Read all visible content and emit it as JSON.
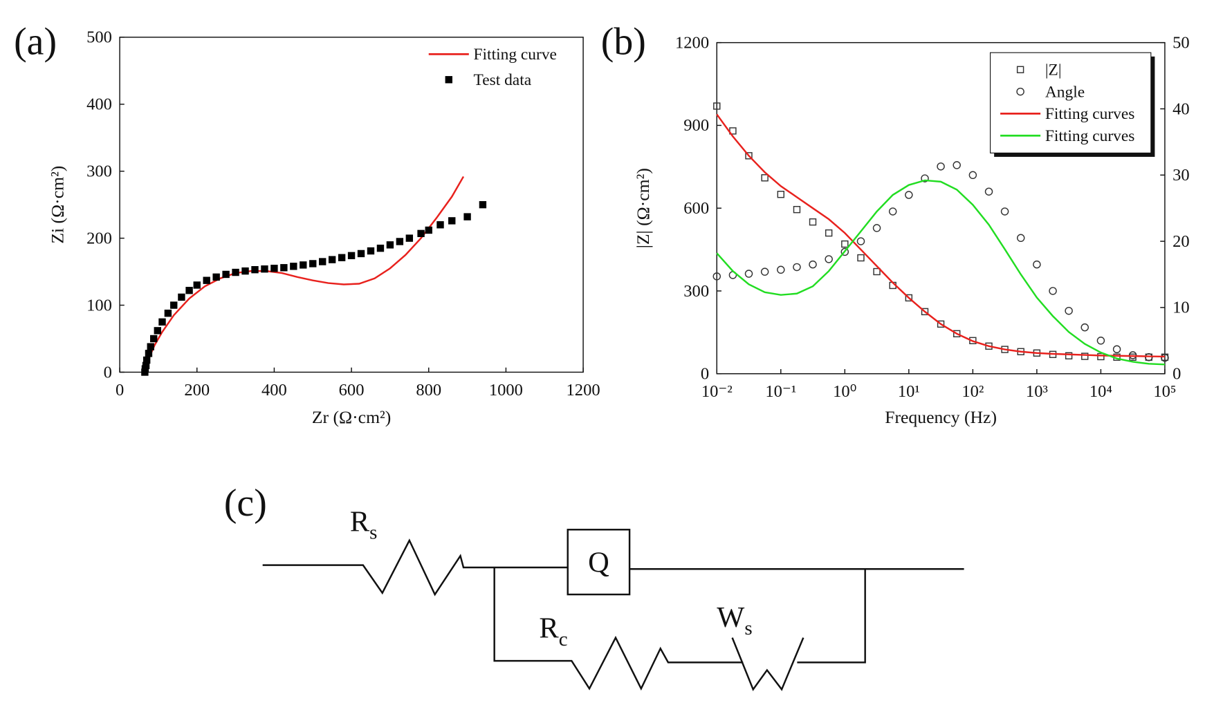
{
  "chart_data": [
    {
      "type": "scatter",
      "panel_label": "(a)",
      "xlabel": "Zr (Ω·cm²)",
      "ylabel": "Zi (Ω·cm²)",
      "xlim": [
        0,
        1200
      ],
      "xticks": [
        0,
        200,
        400,
        600,
        800,
        1000,
        1200
      ],
      "ylim": [
        0,
        500
      ],
      "yticks": [
        0,
        100,
        200,
        300,
        400,
        500
      ],
      "legend": "upper right",
      "series": [
        {
          "name": "Fitting curve",
          "color": "#e8211d",
          "mode": "line",
          "x": [
            65,
            75,
            90,
            110,
            140,
            180,
            220,
            260,
            300,
            340,
            380,
            420,
            460,
            500,
            540,
            580,
            620,
            660,
            700,
            740,
            780,
            820,
            860,
            890
          ],
          "values": [
            0,
            20,
            40,
            60,
            85,
            110,
            128,
            140,
            148,
            151,
            151,
            148,
            142,
            137,
            133,
            131,
            132,
            140,
            155,
            175,
            200,
            230,
            262,
            292
          ]
        },
        {
          "name": "Test data",
          "color": "#000000",
          "mode": "markers",
          "marker": "square-filled",
          "x": [
            65,
            66,
            68,
            70,
            75,
            80,
            88,
            98,
            110,
            125,
            140,
            160,
            180,
            200,
            225,
            250,
            275,
            300,
            325,
            350,
            375,
            400,
            425,
            450,
            475,
            500,
            525,
            550,
            575,
            600,
            625,
            650,
            675,
            700,
            725,
            750,
            780,
            800,
            830,
            860,
            900,
            940
          ],
          "values": [
            0,
            5,
            10,
            18,
            28,
            38,
            50,
            62,
            75,
            88,
            100,
            112,
            122,
            130,
            137,
            142,
            146,
            149,
            151,
            153,
            154,
            155,
            156,
            158,
            160,
            162,
            165,
            168,
            171,
            174,
            177,
            181,
            185,
            190,
            195,
            200,
            207,
            212,
            220,
            226,
            232,
            250
          ]
        }
      ]
    },
    {
      "type": "line",
      "panel_label": "(b)",
      "xlabel": "Frequency (Hz)",
      "ylabel": "|Z| (Ω·cm²)",
      "xscale": "log",
      "xlim": [
        0.01,
        100000
      ],
      "xticks": [
        {
          "value": 0.01,
          "label": "10⁻²"
        },
        {
          "value": 0.1,
          "label": "10⁻¹"
        },
        {
          "value": 1,
          "label": "10⁰"
        },
        {
          "value": 10,
          "label": "10¹"
        },
        {
          "value": 100,
          "label": "10²"
        },
        {
          "value": 1000,
          "label": "10³"
        },
        {
          "value": 10000,
          "label": "10⁴"
        },
        {
          "value": 100000,
          "label": "10⁵"
        }
      ],
      "ylim": [
        0,
        1200
      ],
      "yticks": [
        0,
        300,
        600,
        900,
        1200
      ],
      "y2lim": [
        0,
        50
      ],
      "y2ticks": [
        0,
        10,
        20,
        30,
        40,
        50
      ],
      "legend": "upper right",
      "x": [
        0.01,
        0.0178,
        0.0316,
        0.0562,
        0.1,
        0.178,
        0.316,
        0.562,
        1,
        1.78,
        3.16,
        5.62,
        10,
        17.8,
        31.6,
        56.2,
        100,
        178,
        316,
        562,
        1000,
        1780,
        3160,
        5620,
        10000,
        17800,
        31600,
        56200,
        100000
      ],
      "series": [
        {
          "name": "|Z|",
          "color": "#333333",
          "mode": "markers",
          "marker": "square-open",
          "values": [
            970,
            880,
            790,
            710,
            650,
            595,
            550,
            510,
            470,
            420,
            370,
            320,
            275,
            225,
            180,
            145,
            120,
            100,
            88,
            80,
            75,
            70,
            65,
            63,
            62,
            60,
            60,
            60,
            60
          ]
        },
        {
          "name": "Angle",
          "color": "#333333",
          "mode": "markers",
          "marker": "circle-open",
          "axis": "y2",
          "values": [
            14.7,
            14.9,
            15.1,
            15.4,
            15.7,
            16.1,
            16.5,
            17.3,
            18.4,
            20,
            22,
            24.5,
            27,
            29.5,
            31.3,
            31.5,
            30,
            27.5,
            24.5,
            20.5,
            16.5,
            12.5,
            9.5,
            7,
            5,
            3.7,
            2.8,
            2.5,
            2.4
          ]
        },
        {
          "name": "Fitting curves",
          "color": "#e8211d",
          "mode": "line",
          "values": [
            940,
            860,
            790,
            730,
            680,
            640,
            600,
            560,
            510,
            450,
            390,
            330,
            275,
            225,
            180,
            145,
            118,
            100,
            88,
            80,
            75,
            72,
            70,
            68,
            66,
            65,
            64,
            63,
            62
          ]
        },
        {
          "name": "Fitting curves",
          "color": "#22dd22",
          "mode": "line",
          "axis": "y2",
          "values": [
            18.2,
            15.5,
            13.5,
            12.3,
            11.9,
            12.1,
            13.2,
            15.5,
            18.5,
            21.5,
            24.5,
            27,
            28.5,
            29.2,
            29,
            27.8,
            25.5,
            22.5,
            18.8,
            15,
            11.5,
            8.7,
            6.3,
            4.5,
            3.2,
            2.3,
            1.8,
            1.5,
            1.4
          ]
        }
      ]
    }
  ],
  "diagram": {
    "panel_label": "(c)",
    "components": [
      {
        "symbol": "R",
        "subscript": "s"
      },
      {
        "symbol": "Q"
      },
      {
        "symbol": "R",
        "subscript": "c"
      },
      {
        "symbol": "W",
        "subscript": "s"
      }
    ]
  }
}
